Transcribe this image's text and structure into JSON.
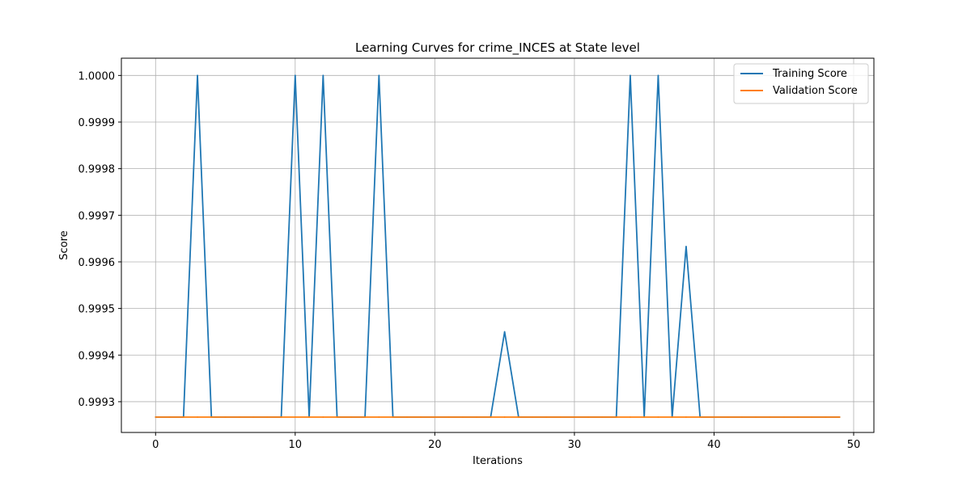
{
  "chart_data": {
    "type": "line",
    "title": "Learning Curves for crime_INCES at State level",
    "xlabel": "Iterations",
    "ylabel": "Score",
    "xlim": [
      -2.45,
      51.45
    ],
    "ylim": [
      0.999234,
      1.000037
    ],
    "xticks": [
      0,
      10,
      20,
      30,
      40,
      50
    ],
    "yticks": [
      0.9993,
      0.9994,
      0.9995,
      0.9996,
      0.9997,
      0.9998,
      0.9999,
      1.0
    ],
    "ytick_labels": [
      "0.9993",
      "0.9994",
      "0.9995",
      "0.9996",
      "0.9997",
      "0.9998",
      "0.9999",
      "1.0000"
    ],
    "grid": true,
    "legend_position": "top-right",
    "series": [
      {
        "name": "Training Score",
        "color": "#1f77b4",
        "x": [
          0,
          1,
          2,
          3,
          4,
          5,
          6,
          7,
          8,
          9,
          10,
          11,
          12,
          13,
          14,
          15,
          16,
          17,
          18,
          19,
          20,
          21,
          22,
          23,
          24,
          25,
          26,
          27,
          28,
          29,
          30,
          31,
          32,
          33,
          34,
          35,
          36,
          37,
          38,
          39,
          40,
          41,
          42,
          43,
          44,
          45,
          46,
          47,
          48,
          49
        ],
        "values": [
          0.999267,
          0.999267,
          0.999267,
          1.0,
          0.999267,
          0.999267,
          0.999267,
          0.999267,
          0.999267,
          0.999267,
          1.0,
          0.999267,
          1.0,
          0.999267,
          0.999267,
          0.999267,
          1.0,
          0.999267,
          0.999267,
          0.999267,
          0.999267,
          0.999267,
          0.999267,
          0.999267,
          0.999267,
          0.99945,
          0.999267,
          0.999267,
          0.999267,
          0.999267,
          0.999267,
          0.999267,
          0.999267,
          0.999267,
          1.0,
          0.999267,
          1.0,
          0.999267,
          0.999633,
          0.999267,
          0.999267,
          0.999267,
          0.999267,
          0.999267,
          0.999267,
          0.999267,
          0.999267,
          0.999267,
          0.999267,
          0.999267
        ]
      },
      {
        "name": "Validation Score",
        "color": "#ff7f0e",
        "x": [
          0,
          1,
          2,
          3,
          4,
          5,
          6,
          7,
          8,
          9,
          10,
          11,
          12,
          13,
          14,
          15,
          16,
          17,
          18,
          19,
          20,
          21,
          22,
          23,
          24,
          25,
          26,
          27,
          28,
          29,
          30,
          31,
          32,
          33,
          34,
          35,
          36,
          37,
          38,
          39,
          40,
          41,
          42,
          43,
          44,
          45,
          46,
          47,
          48,
          49
        ],
        "values": [
          0.999267,
          0.999267,
          0.999267,
          0.999267,
          0.999267,
          0.999267,
          0.999267,
          0.999267,
          0.999267,
          0.999267,
          0.999267,
          0.999267,
          0.999267,
          0.999267,
          0.999267,
          0.999267,
          0.999267,
          0.999267,
          0.999267,
          0.999267,
          0.999267,
          0.999267,
          0.999267,
          0.999267,
          0.999267,
          0.999267,
          0.999267,
          0.999267,
          0.999267,
          0.999267,
          0.999267,
          0.999267,
          0.999267,
          0.999267,
          0.999267,
          0.999267,
          0.999267,
          0.999267,
          0.999267,
          0.999267,
          0.999267,
          0.999267,
          0.999267,
          0.999267,
          0.999267,
          0.999267,
          0.999267,
          0.999267,
          0.999267,
          0.999267
        ]
      }
    ]
  }
}
